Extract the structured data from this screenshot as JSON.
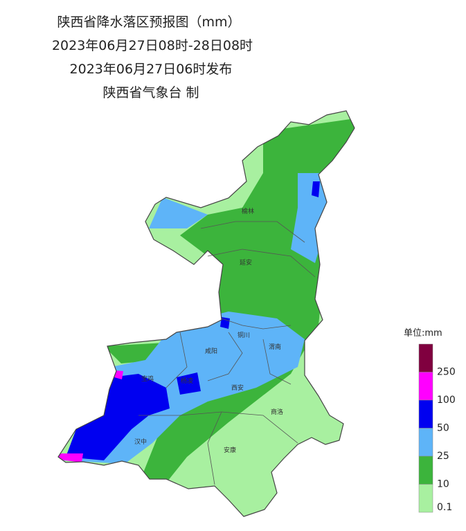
{
  "header": {
    "title": "陕西省降水落区预报图（mm）",
    "period": "2023年06月27日08时-28日08时",
    "issued": "2023年06月27日06时发布",
    "producer": "陕西省气象台 制"
  },
  "cities": [
    {
      "label": "榆林"
    },
    {
      "label": "延安"
    },
    {
      "label": "铜川"
    },
    {
      "label": "咸阳"
    },
    {
      "label": "渭南"
    },
    {
      "label": "宝鸡"
    },
    {
      "label": "杨凌"
    },
    {
      "label": "西安"
    },
    {
      "label": "汉中"
    },
    {
      "label": "安康"
    },
    {
      "label": "商洛"
    }
  ],
  "legend": {
    "title": "单位:mm",
    "items": [
      {
        "label": "250",
        "color": "#80003f"
      },
      {
        "label": "100",
        "color": "#ff00ff"
      },
      {
        "label": "50",
        "color": "#0000f0"
      },
      {
        "label": "25",
        "color": "#5eb4f8"
      },
      {
        "label": "10",
        "color": "#3cb43c"
      },
      {
        "label": "0.1",
        "color": "#a8f0a0"
      }
    ]
  }
}
